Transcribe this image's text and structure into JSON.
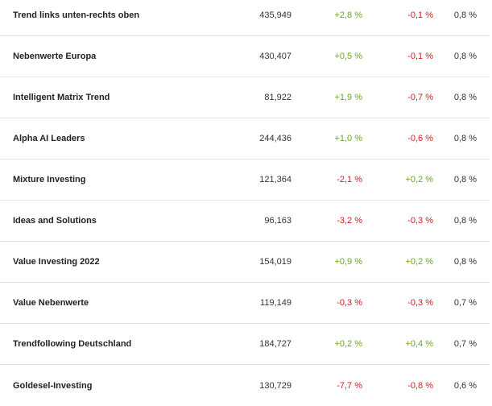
{
  "colors": {
    "positive": "#6aa627",
    "negative": "#d21f1f",
    "divider": "#e3e3e3"
  },
  "rows": [
    {
      "name": "Trend links unten-rechts oben",
      "value": "435,949",
      "change1": "+2,8 %",
      "change2": "-0,1 %",
      "fee": "0,8 %"
    },
    {
      "name": "Nebenwerte Europa",
      "value": "430,407",
      "change1": "+0,5 %",
      "change2": "-0,1 %",
      "fee": "0,8 %"
    },
    {
      "name": "Intelligent Matrix Trend",
      "value": "81,922",
      "change1": "+1,9 %",
      "change2": "-0,7 %",
      "fee": "0,8 %"
    },
    {
      "name": "Alpha AI Leaders",
      "value": "244,436",
      "change1": "+1,0 %",
      "change2": "-0,6 %",
      "fee": "0,8 %"
    },
    {
      "name": "Mixture Investing",
      "value": "121,364",
      "change1": "-2,1 %",
      "change2": "+0,2 %",
      "fee": "0,8 %"
    },
    {
      "name": "Ideas and Solutions",
      "value": "96,163",
      "change1": "-3,2 %",
      "change2": "-0,3 %",
      "fee": "0,8 %"
    },
    {
      "name": "Value Investing 2022",
      "value": "154,019",
      "change1": "+0,9 %",
      "change2": "+0,2 %",
      "fee": "0,8 %"
    },
    {
      "name": "Value Nebenwerte",
      "value": "119,149",
      "change1": "-0,3 %",
      "change2": "-0,3 %",
      "fee": "0,7 %"
    },
    {
      "name": "Trendfollowing Deutschland",
      "value": "184,727",
      "change1": "+0,2 %",
      "change2": "+0,4 %",
      "fee": "0,7 %"
    },
    {
      "name": "Goldesel-Investing",
      "value": "130,729",
      "change1": "-7,7 %",
      "change2": "-0,8 %",
      "fee": "0,6 %"
    }
  ]
}
